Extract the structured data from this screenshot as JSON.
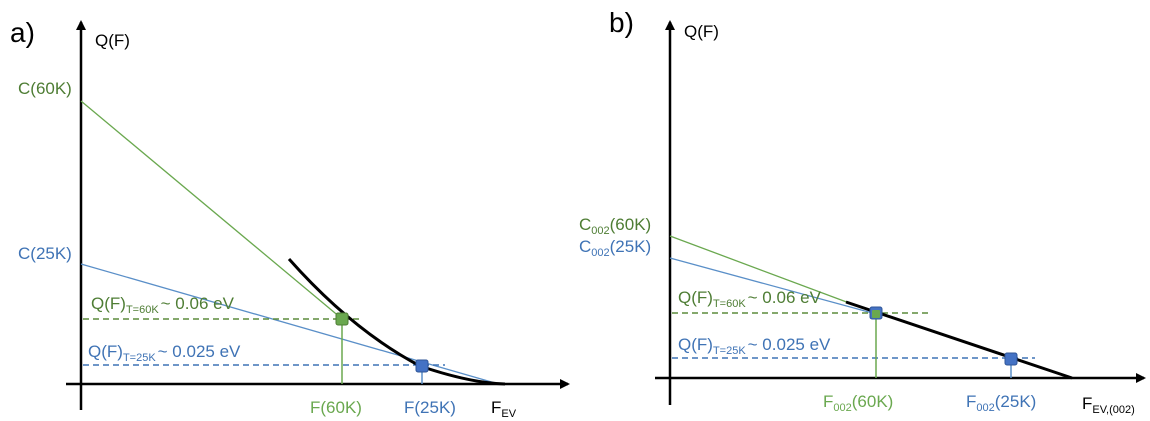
{
  "colors": {
    "green": "#6aa84f",
    "green_dark": "#5b8c3c",
    "green_label": "#4e7d34",
    "blue": "#5a8fc8",
    "blue_dark": "#3f73b5",
    "curve": "#000000"
  },
  "panel_a": {
    "panel_label": "a)",
    "y_axis_label": "Q(F)",
    "x_axis_label_main": "F",
    "x_axis_label_sub": "EV",
    "intercept_60k": "C(60K)",
    "intercept_25k": "C(25K)",
    "q60_main": "Q(F)",
    "q60_sub": "T=60K",
    "q60_value": "~ 0.06 eV",
    "q25_main": "Q(F)",
    "q25_sub": "T=25K",
    "q25_value": "~ 0.025 eV",
    "f60_label": "F(60K)",
    "f25_label": "F(25K)"
  },
  "panel_b": {
    "panel_label": "b)",
    "y_axis_label": "Q(F)",
    "x_axis_label_main": "F",
    "x_axis_label_sub": "EV,(002)",
    "intercept_60k_main": "C",
    "intercept_60k_sub": "002",
    "intercept_60k_tail": "(60K)",
    "intercept_25k_main": "C",
    "intercept_25k_sub": "002",
    "intercept_25k_tail": "(25K)",
    "q60_main": "Q(F)",
    "q60_sub": "T=60K",
    "q60_value": "~ 0.06 eV",
    "q25_main": "Q(F)",
    "q25_sub": "T=25K",
    "q25_value": "~ 0.025 eV",
    "f60_main": "F",
    "f60_sub": "002",
    "f60_tail": "(60K)",
    "f25_main": "F",
    "f25_sub": "002",
    "f25_tail": "(25K)"
  }
}
